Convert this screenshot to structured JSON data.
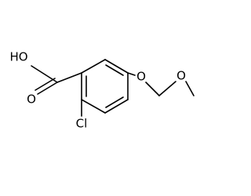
{
  "atoms": [
    {
      "label": "HO"
    },
    {
      "label": "O"
    },
    {
      "label": "Cl"
    },
    {
      "label": "O"
    },
    {
      "label": "O"
    }
  ]
}
